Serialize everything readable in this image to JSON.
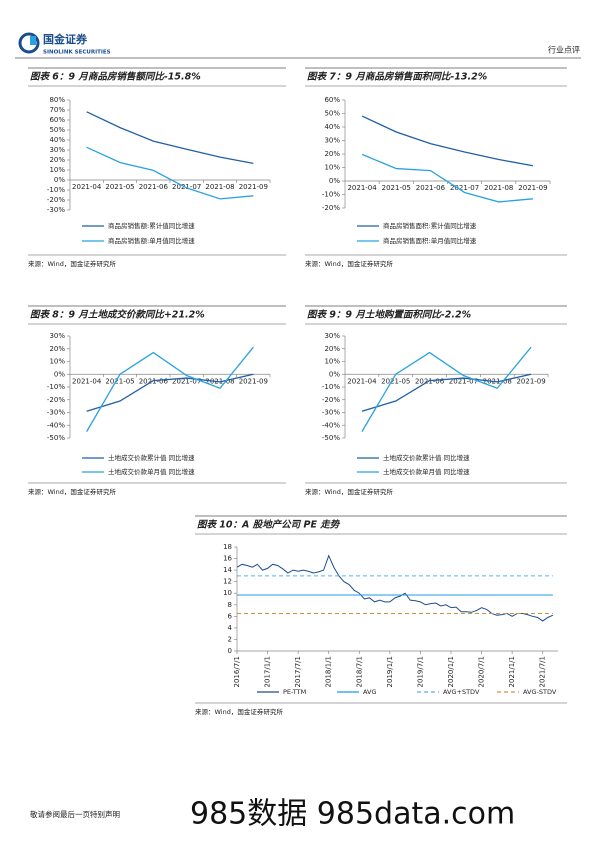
{
  "header": {
    "company": "国金证券",
    "company_en": "SINOLINK SECURITIES",
    "section": "行业点评"
  },
  "chart_data": [
    {
      "type": "line",
      "title": "图表 6：9 月商品房销售额同比-15.8%",
      "categories": [
        "2021-04",
        "2021-05",
        "2021-06",
        "2021-07",
        "2021-08",
        "2021-09"
      ],
      "series": [
        {
          "name": "商品房销售额:累计值同比增速",
          "color": "#1f5fa8",
          "values": [
            68.2,
            52.4,
            38.9,
            30.7,
            22.9,
            16.6
          ]
        },
        {
          "name": "商品房销售额:单月值同比增速",
          "color": "#29a3e0",
          "values": [
            32.7,
            17.5,
            9.6,
            -7.9,
            -18.9,
            -15.8
          ]
        }
      ],
      "ylim": [
        -30,
        80
      ],
      "yticks": [
        {
          "value": 80,
          "label": "80%"
        },
        {
          "value": 70,
          "label": "70%"
        },
        {
          "value": 60,
          "label": "60%"
        },
        {
          "value": 50,
          "label": "50%"
        },
        {
          "value": 40,
          "label": "40%"
        },
        {
          "value": 30,
          "label": "30%"
        },
        {
          "value": 20,
          "label": "20%"
        },
        {
          "value": 10,
          "label": "10%"
        },
        {
          "value": 0,
          "label": "0%"
        },
        {
          "value": -10,
          "label": "-10%"
        },
        {
          "value": -20,
          "label": "-20%"
        },
        {
          "value": -30,
          "label": "-30%"
        }
      ],
      "source": "来源：Wind，国金证券研究所"
    },
    {
      "type": "line",
      "title": "图表 7：9 月商品房销售面积同比-13.2%",
      "categories": [
        "2021-04",
        "2021-05",
        "2021-06",
        "2021-07",
        "2021-08",
        "2021-09"
      ],
      "series": [
        {
          "name": "商品房销售面积:累计值同比增速",
          "color": "#1f5fa8",
          "values": [
            48.1,
            36.3,
            27.7,
            21.5,
            15.9,
            11.3
          ]
        },
        {
          "name": "商品房销售面积:单月值同比增速",
          "color": "#29a3e0",
          "values": [
            19.7,
            9.2,
            7.7,
            -8.5,
            -15.5,
            -13.2
          ]
        }
      ],
      "ylim": [
        -20,
        60
      ],
      "yticks": [
        {
          "value": 60,
          "label": "60%"
        },
        {
          "value": 50,
          "label": "50%"
        },
        {
          "value": 40,
          "label": "40%"
        },
        {
          "value": 30,
          "label": "30%"
        },
        {
          "value": 20,
          "label": "20%"
        },
        {
          "value": 10,
          "label": "10%"
        },
        {
          "value": 0,
          "label": "0%"
        },
        {
          "value": -10,
          "label": "-10%"
        },
        {
          "value": -20,
          "label": "-20%"
        }
      ],
      "source": "来源：Wind，国金证券研究所"
    },
    {
      "type": "line",
      "title": "图表 8：9 月土地成交价款同比+21.2%",
      "categories": [
        "2021-04",
        "2021-05",
        "2021-06",
        "2021-07",
        "2021-08",
        "2021-09"
      ],
      "series": [
        {
          "name": "土地成交价款累计值 同比增速",
          "color": "#1f5fa8",
          "values": [
            -29,
            -21,
            -5,
            -3,
            -6,
            0
          ]
        },
        {
          "name": "土地成交价款单月值 同比增速",
          "color": "#29a3e0",
          "values": [
            -45,
            0,
            17,
            -1,
            -11,
            21.2
          ]
        }
      ],
      "ylim": [
        -50,
        30
      ],
      "yticks": [
        {
          "value": 30,
          "label": "30%"
        },
        {
          "value": 20,
          "label": "20%"
        },
        {
          "value": 10,
          "label": "10%"
        },
        {
          "value": 0,
          "label": "0%"
        },
        {
          "value": -10,
          "label": "-10%"
        },
        {
          "value": -20,
          "label": "-20%"
        },
        {
          "value": -30,
          "label": "-30%"
        },
        {
          "value": -40,
          "label": "-40%"
        },
        {
          "value": -50,
          "label": "-50%"
        }
      ],
      "source": "来源：Wind，国金证券研究所"
    },
    {
      "type": "line",
      "title": "图表 9：9 月土地购置面积同比-2.2%",
      "categories": [
        "2021-04",
        "2021-05",
        "2021-06",
        "2021-07",
        "2021-08",
        "2021-09"
      ],
      "series": [
        {
          "name": "土地成交价款累计值 同比增速",
          "color": "#1f5fa8",
          "values": [
            -29,
            -21,
            -5,
            -3,
            -6,
            0
          ]
        },
        {
          "name": "土地成交价款单月值 同比增速",
          "color": "#29a3e0",
          "values": [
            -45,
            0,
            17,
            -1,
            -11,
            21.2
          ]
        }
      ],
      "ylim": [
        -50,
        30
      ],
      "yticks": [
        {
          "value": 30,
          "label": "30%"
        },
        {
          "value": 20,
          "label": "20%"
        },
        {
          "value": 10,
          "label": "10%"
        },
        {
          "value": 0,
          "label": "0%"
        },
        {
          "value": -10,
          "label": "-10%"
        },
        {
          "value": -20,
          "label": "-20%"
        },
        {
          "value": -30,
          "label": "-30%"
        },
        {
          "value": -40,
          "label": "-40%"
        },
        {
          "value": -50,
          "label": "-50%"
        }
      ],
      "source": "来源：Wind，国金证券研究所"
    },
    {
      "type": "line",
      "title": "图表 10：A 股地产公司 PE 走势",
      "x": [
        "2016/7/1",
        "2016/8/1",
        "2016/9/1",
        "2016/10/1",
        "2016/11/1",
        "2016/12/1",
        "2017/1/1",
        "2017/2/1",
        "2017/3/1",
        "2017/4/1",
        "2017/5/1",
        "2017/6/1",
        "2017/7/1",
        "2017/8/1",
        "2017/9/1",
        "2017/10/1",
        "2017/11/1",
        "2017/12/1",
        "2018/1/1",
        "2018/2/1",
        "2018/3/1",
        "2018/4/1",
        "2018/5/1",
        "2018/6/1",
        "2018/7/1",
        "2018/8/1",
        "2018/9/1",
        "2018/10/1",
        "2018/11/1",
        "2018/12/1",
        "2019/1/1",
        "2019/2/1",
        "2019/3/1",
        "2019/4/1",
        "2019/5/1",
        "2019/6/1",
        "2019/7/1",
        "2019/8/1",
        "2019/9/1",
        "2019/10/1",
        "2019/11/1",
        "2019/12/1",
        "2020/1/1",
        "2020/2/1",
        "2020/3/1",
        "2020/4/1",
        "2020/5/1",
        "2020/6/1",
        "2020/7/1",
        "2020/8/1",
        "2020/9/1",
        "2020/10/1",
        "2020/11/1",
        "2020/12/1",
        "2021/1/1",
        "2021/2/1",
        "2021/3/1",
        "2021/4/1",
        "2021/5/1",
        "2021/6/1",
        "2021/7/1",
        "2021/8/1",
        "2021/9/1"
      ],
      "series": [
        {
          "name": "PE-TTM",
          "color": "#1a4d8f",
          "style": "solid",
          "values": [
            14.5,
            15,
            14.8,
            14.5,
            15,
            14,
            14.3,
            15,
            14.8,
            14.2,
            13.5,
            14,
            13.8,
            14,
            13.8,
            13.5,
            13.7,
            14,
            16.5,
            14.5,
            13,
            12,
            11.5,
            10.5,
            10,
            9,
            9.2,
            8.5,
            8.8,
            8.5,
            8.5,
            9.2,
            9.5,
            10,
            8.8,
            8.7,
            8.5,
            8,
            8.2,
            8.3,
            7.8,
            8,
            7.5,
            7.6,
            6.8,
            6.8,
            6.7,
            7,
            7.5,
            7.2,
            6.5,
            6.2,
            6.3,
            6.5,
            6,
            6.5,
            6.5,
            6.3,
            6,
            5.8,
            5.2,
            5.8,
            6.2
          ]
        },
        {
          "name": "AVG",
          "color": "#1f9be0",
          "style": "solid",
          "values": [
            9.7,
            9.7,
            9.7,
            9.7,
            9.7,
            9.7,
            9.7,
            9.7,
            9.7,
            9.7,
            9.7,
            9.7,
            9.7,
            9.7,
            9.7,
            9.7,
            9.7,
            9.7,
            9.7,
            9.7,
            9.7,
            9.7,
            9.7,
            9.7,
            9.7,
            9.7,
            9.7,
            9.7,
            9.7,
            9.7,
            9.7,
            9.7,
            9.7,
            9.7,
            9.7,
            9.7,
            9.7,
            9.7,
            9.7,
            9.7,
            9.7,
            9.7,
            9.7,
            9.7,
            9.7,
            9.7,
            9.7,
            9.7,
            9.7,
            9.7,
            9.7,
            9.7,
            9.7,
            9.7,
            9.7,
            9.7,
            9.7,
            9.7,
            9.7,
            9.7,
            9.7,
            9.7,
            9.7
          ]
        },
        {
          "name": "AVG+STDV",
          "color": "#4fb3e8",
          "style": "dashed",
          "values": [
            13,
            13,
            13,
            13,
            13,
            13,
            13,
            13,
            13,
            13,
            13,
            13,
            13,
            13,
            13,
            13,
            13,
            13,
            13,
            13,
            13,
            13,
            13,
            13,
            13,
            13,
            13,
            13,
            13,
            13,
            13,
            13,
            13,
            13,
            13,
            13,
            13,
            13,
            13,
            13,
            13,
            13,
            13,
            13,
            13,
            13,
            13,
            13,
            13,
            13,
            13,
            13,
            13,
            13,
            13,
            13,
            13,
            13,
            13,
            13,
            13,
            13,
            13
          ]
        },
        {
          "name": "AVG-STDV",
          "color": "#c8963e",
          "style": "dashed",
          "values": [
            6.5,
            6.5,
            6.5,
            6.5,
            6.5,
            6.5,
            6.5,
            6.5,
            6.5,
            6.5,
            6.5,
            6.5,
            6.5,
            6.5,
            6.5,
            6.5,
            6.5,
            6.5,
            6.5,
            6.5,
            6.5,
            6.5,
            6.5,
            6.5,
            6.5,
            6.5,
            6.5,
            6.5,
            6.5,
            6.5,
            6.5,
            6.5,
            6.5,
            6.5,
            6.5,
            6.5,
            6.5,
            6.5,
            6.5,
            6.5,
            6.5,
            6.5,
            6.5,
            6.5,
            6.5,
            6.5,
            6.5,
            6.5,
            6.5,
            6.5,
            6.5,
            6.5,
            6.5,
            6.5,
            6.5,
            6.5,
            6.5,
            6.5,
            6.5,
            6.5,
            6.5,
            6.5,
            6.5
          ]
        }
      ],
      "xlim": [
        "2016/7/1",
        "2021/10/1"
      ],
      "xticks": [
        "2016/7/1",
        "2017/1/1",
        "2017/7/1",
        "2018/1/1",
        "2018/7/1",
        "2019/1/1",
        "2019/7/1",
        "2020/1/1",
        "2020/7/1",
        "2021/1/1",
        "2021/7/1"
      ],
      "ylim": [
        0,
        18
      ],
      "yticks": [
        0,
        2,
        4,
        6,
        8,
        10,
        12,
        14,
        16,
        18
      ],
      "source": "来源：Wind，国金证券研究所"
    }
  ],
  "footer": {
    "disclaimer": "敬请参阅最后一页特别声明",
    "watermark": "985数据 985data.com"
  }
}
